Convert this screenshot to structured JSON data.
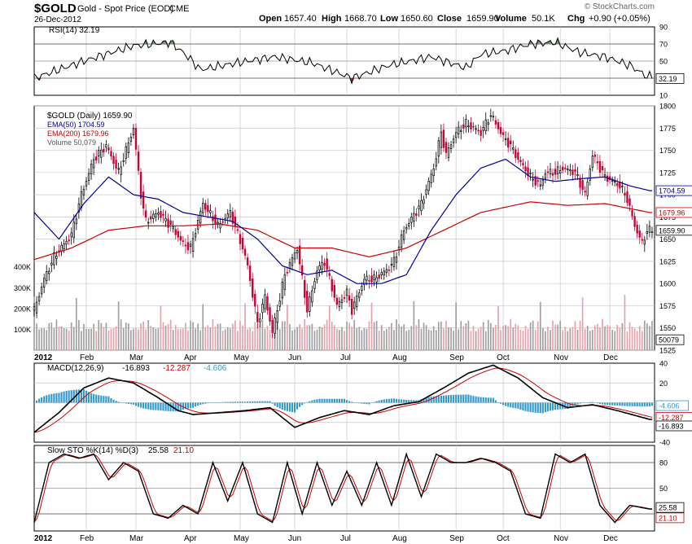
{
  "header": {
    "symbol": "$GOLD",
    "description": "Gold - Spot Price (EOD)",
    "exchange": "CME",
    "date": "26-Dec-2012",
    "watermark": "© StockCharts.com",
    "ohlc": {
      "open_label": "Open",
      "open": "1657.40",
      "high_label": "High",
      "high": "1668.70",
      "low_label": "Low",
      "low": "1650.60",
      "close_label": "Close",
      "close": "1659.90",
      "volume_label": "Volume",
      "volume": "50.1K",
      "chg_label": "Chg",
      "chg": "+0.90 (+0.05%)"
    }
  },
  "colors": {
    "up": "#000000",
    "down": "#cc0033",
    "ema50": "#000099",
    "ema200": "#cc0000",
    "vol_up": "#a0a0a0",
    "vol_down": "#e8a0aa",
    "hist": "#3399cc",
    "rsi_up_fill": "#669966",
    "rsi_down_fill": "#993333",
    "grid": "#c8c8c8"
  },
  "chart_data": [
    {
      "type": "line",
      "name": "rsi",
      "title": "RSI(14) 32.19",
      "last_value": "32.19",
      "ylim": [
        10,
        90
      ],
      "y_ticks": [
        "90",
        "70",
        "50",
        "30",
        "10"
      ],
      "reference_lines": [
        70,
        50,
        30
      ],
      "x_days": [
        0,
        20,
        40,
        55,
        62,
        67,
        82,
        97,
        112,
        128,
        143,
        160,
        174,
        180,
        190,
        200,
        210,
        220,
        230,
        240,
        247
      ],
      "values": [
        30,
        50,
        68,
        72,
        55,
        40,
        48,
        55,
        48,
        30,
        45,
        55,
        42,
        58,
        62,
        70,
        72,
        60,
        55,
        45,
        32
      ]
    },
    {
      "type": "candlestick",
      "name": "price",
      "title": "$GOLD (Daily) 1659.90",
      "legend": [
        "EMA(50) 1704.59",
        "EMA(200) 1679.96",
        "Volume 50,079"
      ],
      "ylim": [
        1525,
        1800
      ],
      "y_ticks": [
        "1800",
        "1775",
        "1750",
        "1725",
        "1700",
        "1675",
        "1650",
        "1625",
        "1600",
        "1575",
        "1550",
        "1525"
      ],
      "x_tick_labels": [
        "2012",
        "Feb",
        "Mar",
        "Apr",
        "May",
        "Jun",
        "Jul",
        "Aug",
        "Sep",
        "Oct",
        "Nov",
        "Dec"
      ],
      "month_start_days": [
        0,
        21,
        41,
        63,
        83,
        105,
        126,
        147,
        170,
        189,
        212,
        232
      ],
      "total_days": 250,
      "price_path_days": [
        0,
        4,
        8,
        15,
        19,
        24,
        29,
        34,
        40,
        43,
        45,
        50,
        55,
        60,
        63,
        68,
        74,
        79,
        84,
        86,
        90,
        93,
        96,
        101,
        106,
        110,
        114,
        117,
        122,
        126,
        128,
        133,
        137,
        142,
        145,
        149,
        156,
        161,
        164,
        166,
        170,
        174,
        180,
        184,
        189,
        192,
        195,
        200,
        204,
        206,
        210,
        213,
        218,
        222,
        225,
        230,
        236,
        239,
        242,
        245,
        247
      ],
      "price_path_close": [
        1570,
        1605,
        1630,
        1655,
        1700,
        1740,
        1755,
        1725,
        1775,
        1700,
        1670,
        1680,
        1665,
        1645,
        1640,
        1690,
        1665,
        1680,
        1640,
        1620,
        1555,
        1585,
        1545,
        1610,
        1640,
        1570,
        1615,
        1625,
        1575,
        1590,
        1570,
        1605,
        1605,
        1615,
        1625,
        1660,
        1690,
        1730,
        1770,
        1745,
        1770,
        1780,
        1770,
        1790,
        1765,
        1755,
        1740,
        1720,
        1710,
        1725,
        1725,
        1730,
        1725,
        1700,
        1745,
        1720,
        1710,
        1695,
        1665,
        1645,
        1659.9
      ],
      "ema50_days": [
        0,
        10,
        20,
        30,
        40,
        50,
        60,
        70,
        80,
        90,
        100,
        110,
        120,
        130,
        140,
        150,
        160,
        170,
        180,
        190,
        200,
        210,
        220,
        230,
        240,
        248
      ],
      "ema50_values": [
        1680,
        1650,
        1690,
        1720,
        1700,
        1695,
        1680,
        1675,
        1670,
        1650,
        1620,
        1610,
        1615,
        1600,
        1600,
        1610,
        1660,
        1700,
        1730,
        1740,
        1720,
        1715,
        1718,
        1720,
        1710,
        1704.59
      ],
      "ema200_days": [
        0,
        15,
        30,
        45,
        60,
        75,
        90,
        105,
        120,
        135,
        150,
        165,
        180,
        200,
        215,
        230,
        248
      ],
      "ema200_values": [
        1627,
        1640,
        1660,
        1665,
        1665,
        1667,
        1660,
        1640,
        1640,
        1630,
        1640,
        1660,
        1680,
        1692,
        1688,
        1690,
        1679.96
      ],
      "ema50_label": "1704.59",
      "ema200_label": "1679.96",
      "close_label": "1659.90",
      "volume_last": "50079",
      "volume_ticks": [
        "400K",
        "300K",
        "200K",
        "100K"
      ],
      "volume_max": 430000
    },
    {
      "type": "line",
      "name": "macd",
      "title": "MACD(12,26,9)",
      "values_text": [
        "-16.893",
        "-12.287",
        "-4.606"
      ],
      "last_labels": [
        "-4.606",
        "-12.287",
        "-16.893"
      ],
      "ylim": [
        -40,
        40
      ],
      "y_ticks": [
        "40",
        "20",
        "0",
        "-20",
        "-40"
      ],
      "macd_days": [
        0,
        10,
        20,
        30,
        40,
        50,
        58,
        64,
        75,
        85,
        95,
        105,
        115,
        125,
        135,
        145,
        155,
        165,
        175,
        185,
        195,
        205,
        215,
        225,
        235,
        248
      ],
      "macd_values": [
        -30,
        -10,
        15,
        25,
        20,
        5,
        -8,
        -12,
        -10,
        -8,
        -5,
        -25,
        -15,
        -8,
        -12,
        -3,
        1,
        15,
        30,
        38,
        25,
        5,
        -5,
        -2,
        -8,
        -16.893
      ]
    },
    {
      "type": "line",
      "name": "stochastic",
      "title": "Slow STO %K(14) %D(3)",
      "values_text": [
        "25.58",
        "21.10"
      ],
      "last_labels": [
        "25.58",
        "21.10"
      ],
      "ylim": [
        0,
        100
      ],
      "y_ticks": [
        "80",
        "50",
        "20"
      ],
      "k_days": [
        0,
        6,
        12,
        18,
        24,
        30,
        36,
        42,
        48,
        54,
        60,
        66,
        72,
        78,
        84,
        90,
        96,
        102,
        108,
        114,
        120,
        126,
        132,
        138,
        144,
        150,
        156,
        162,
        168,
        174,
        180,
        186,
        192,
        198,
        204,
        210,
        216,
        222,
        228,
        234,
        240,
        248
      ],
      "k_values": [
        10,
        80,
        90,
        85,
        90,
        60,
        80,
        70,
        20,
        15,
        30,
        20,
        80,
        35,
        80,
        20,
        10,
        80,
        20,
        80,
        30,
        70,
        30,
        80,
        30,
        90,
        40,
        90,
        80,
        80,
        85,
        80,
        70,
        20,
        15,
        90,
        80,
        90,
        30,
        10,
        30,
        25.58
      ]
    }
  ]
}
